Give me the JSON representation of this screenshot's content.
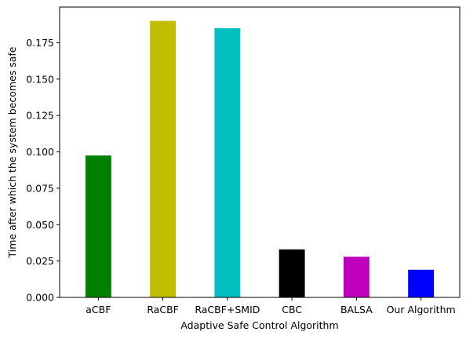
{
  "chart_data": {
    "type": "bar",
    "title": "",
    "xlabel": "Adaptive Safe Control Algorithm",
    "ylabel": "Time after which the system becomes safe",
    "categories": [
      "aCBF",
      "RaCBF",
      "RaCBF+SMID",
      "CBC",
      "BALSA",
      "Our Algorithm"
    ],
    "values": [
      0.0975,
      0.19,
      0.185,
      0.033,
      0.028,
      0.019
    ],
    "colors": [
      "#008000",
      "#bfbf00",
      "#00bfbf",
      "#000000",
      "#bf00bf",
      "#0000ff"
    ],
    "ylim": [
      0,
      0.1995
    ],
    "yticks": [
      "0.000",
      "0.025",
      "0.050",
      "0.075",
      "0.100",
      "0.125",
      "0.150",
      "0.175"
    ],
    "grid": false,
    "legend": "none"
  }
}
